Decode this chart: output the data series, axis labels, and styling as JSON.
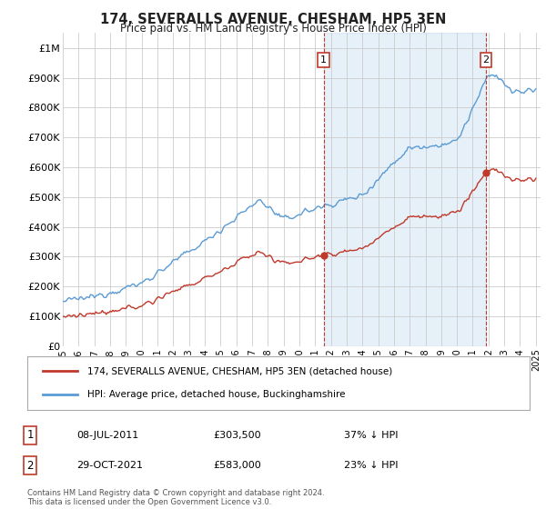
{
  "title": "174, SEVERALLS AVENUE, CHESHAM, HP5 3EN",
  "subtitle": "Price paid vs. HM Land Registry's House Price Index (HPI)",
  "ylim": [
    0,
    1050000
  ],
  "yticks": [
    0,
    100000,
    200000,
    300000,
    400000,
    500000,
    600000,
    700000,
    800000,
    900000,
    1000000
  ],
  "ytick_labels": [
    "£0",
    "£100K",
    "£200K",
    "£300K",
    "£400K",
    "£500K",
    "£600K",
    "£700K",
    "£800K",
    "£900K",
    "£1M"
  ],
  "hpi_color": "#5b9bd5",
  "price_color": "#c0392b",
  "shade_color": "#ddeeff",
  "transaction_1_date": "08-JUL-2011",
  "transaction_1_price": 303500,
  "transaction_1_year": 2011.54,
  "transaction_2_date": "29-OCT-2021",
  "transaction_2_price": 583000,
  "transaction_2_year": 2021.83,
  "legend_property": "174, SEVERALLS AVENUE, CHESHAM, HP5 3EN (detached house)",
  "legend_hpi": "HPI: Average price, detached house, Buckinghamshire",
  "footer": "Contains HM Land Registry data © Crown copyright and database right 2024.\nThis data is licensed under the Open Government Licence v3.0.",
  "background_color": "#ffffff",
  "grid_color": "#cccccc",
  "label_box_color": "#c0392b"
}
